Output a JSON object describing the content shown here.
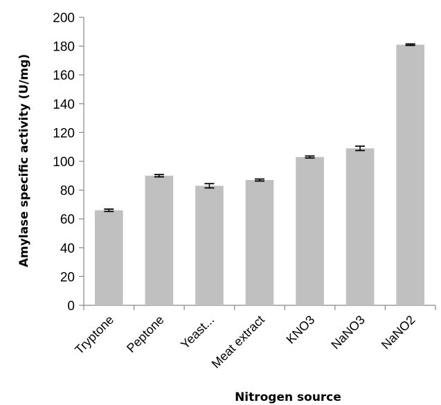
{
  "chart_data": {
    "type": "bar",
    "title": "",
    "xlabel": "Nitrogen source",
    "ylabel": "Amylase specific activity  (U/mg)",
    "categories": [
      "Tryptone",
      "Peptone",
      "Yeast...",
      "Meat extract",
      "KNO3",
      "NaNO3",
      "NaNO2"
    ],
    "values": [
      66,
      90,
      83,
      87,
      103,
      109,
      181
    ],
    "errors": [
      0.8,
      0.8,
      1.5,
      0.7,
      0.7,
      1.5,
      0.5
    ],
    "ylim": [
      0,
      200
    ],
    "yticks": [
      0,
      20,
      40,
      60,
      80,
      100,
      120,
      140,
      160,
      180,
      200
    ],
    "grid": false,
    "legend": "none",
    "bar_color": "#c0c0c0",
    "error_bar_color": "#000000",
    "axis_color": "#868686"
  }
}
